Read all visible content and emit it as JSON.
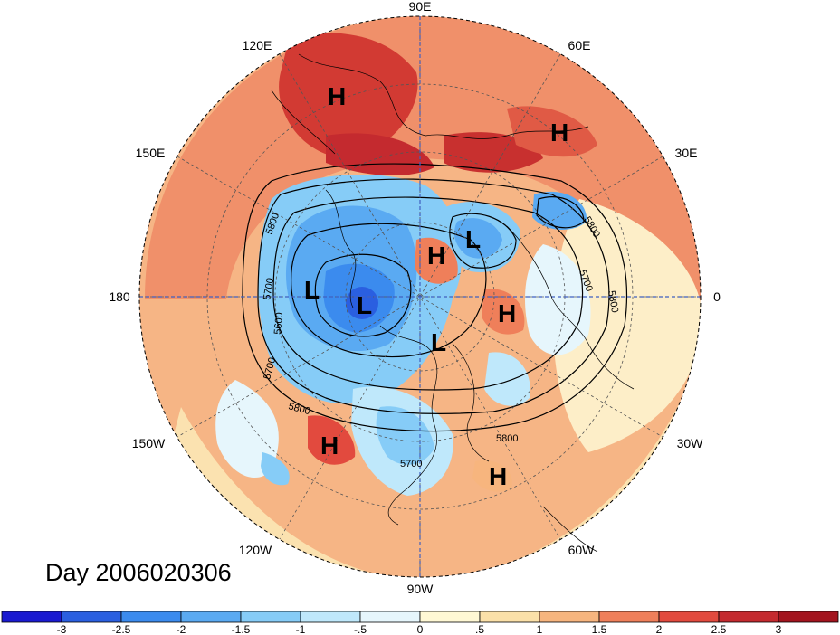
{
  "title": "Day 2006020306",
  "longitude_labels": [
    "90E",
    "60E",
    "30E",
    "0",
    "30W",
    "60W",
    "90W",
    "120W",
    "150W",
    "180",
    "150E",
    "120E"
  ],
  "pressure_systems": [
    {
      "type": "H"
    },
    {
      "type": "H"
    },
    {
      "type": "L"
    },
    {
      "type": "H"
    },
    {
      "type": "L"
    },
    {
      "type": "L"
    },
    {
      "type": "H"
    },
    {
      "type": "L"
    },
    {
      "type": "H"
    },
    {
      "type": "H"
    }
  ],
  "contour_labels": [
    "5800",
    "5700",
    "5600",
    "5700",
    "5800",
    "5800",
    "5800",
    "5700",
    "5700",
    "5800"
  ],
  "colorbar": {
    "ticks": [
      "-3",
      "-2.5",
      "-2",
      "-1.5",
      "-1",
      "-.5",
      "0",
      ".5",
      "1",
      "1.5",
      "2",
      "2.5",
      "3"
    ],
    "colors": [
      "#1a1ad0",
      "#2a5fe0",
      "#3b8bee",
      "#5aaaf2",
      "#86ccf7",
      "#bfe8fb",
      "#e6f6fc",
      "#fff8d4",
      "#fbe0a8",
      "#f7b57e",
      "#ef7f5a",
      "#e24a3e",
      "#c42a2f",
      "#a3141e"
    ]
  }
}
